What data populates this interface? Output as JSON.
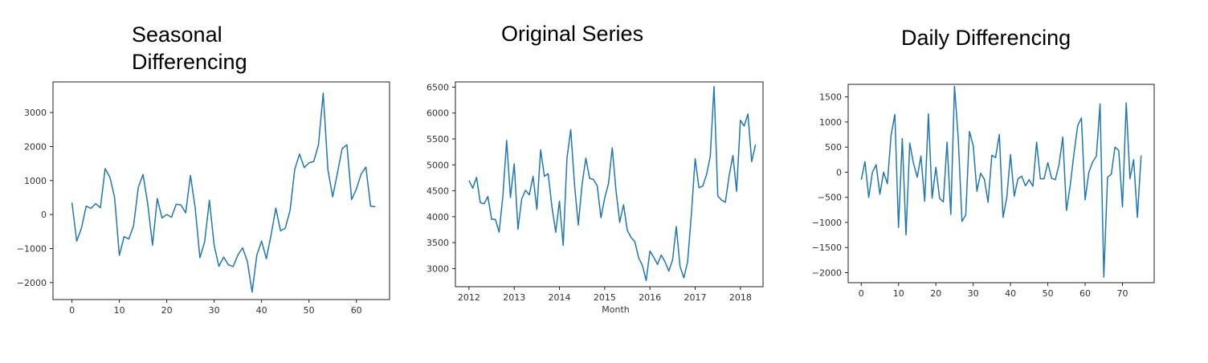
{
  "headings": {
    "seasonal": [
      "Seasonal",
      "Differencing"
    ],
    "original": "Original Series",
    "daily": "Daily Differencing"
  },
  "colors": {
    "series": "#1f77b4",
    "axis": "#222222"
  },
  "chart_data": [
    {
      "id": "seasonal",
      "type": "line",
      "title": "",
      "xlabel": "",
      "ylabel": "",
      "xlim": [
        -4,
        67
      ],
      "ylim": [
        -2500,
        3900
      ],
      "xticks": [
        0,
        10,
        20,
        30,
        40,
        50,
        60
      ],
      "yticks": [
        -2000,
        -1000,
        0,
        1000,
        2000,
        3000
      ],
      "ytick_labels": [
        "−2000",
        "−1000",
        "0",
        "1000",
        "2000",
        "3000"
      ],
      "series": [
        {
          "x": [
            0,
            1,
            2,
            3,
            4,
            5,
            6,
            7,
            8,
            9,
            10,
            11,
            12,
            13,
            14,
            15,
            16,
            17,
            18,
            19,
            20,
            21,
            22,
            23,
            24,
            25,
            26,
            27,
            28,
            29,
            30,
            31,
            32,
            33,
            34,
            35,
            36,
            37,
            38,
            39,
            40,
            41,
            42,
            43,
            44,
            45,
            46,
            47,
            48,
            49,
            50,
            51,
            52,
            53,
            54,
            55,
            56,
            57,
            58,
            59,
            60,
            61,
            62,
            63,
            64
          ],
          "values": [
            350,
            -780,
            -400,
            250,
            180,
            320,
            200,
            1350,
            1100,
            500,
            -1200,
            -650,
            -720,
            -330,
            800,
            1180,
            300,
            -900,
            470,
            -100,
            0,
            -80,
            300,
            280,
            50,
            1150,
            200,
            -1270,
            -800,
            420,
            -900,
            -1520,
            -1250,
            -1480,
            -1530,
            -1190,
            -980,
            -1380,
            -2280,
            -1190,
            -780,
            -1300,
            -600,
            190,
            -480,
            -400,
            120,
            1330,
            1780,
            1380,
            1520,
            1560,
            2050,
            3570,
            1310,
            520,
            1220,
            1940,
            2050,
            440,
            750,
            1190,
            1400,
            250,
            230
          ]
        }
      ]
    },
    {
      "id": "original",
      "type": "line",
      "title": "",
      "xlabel": "Month",
      "ylabel": "",
      "xlim": [
        2011.7,
        2018.5
      ],
      "ylim": [
        2650,
        6600
      ],
      "xticks": [
        2012,
        2013,
        2014,
        2015,
        2016,
        2017,
        2018
      ],
      "yticks": [
        3000,
        3500,
        4000,
        4500,
        5000,
        5500,
        6000,
        6500
      ],
      "series": [
        {
          "x_start": "2012-01",
          "x_step": "month",
          "values": [
            4700,
            4550,
            4760,
            4270,
            4250,
            4390,
            3950,
            3950,
            3700,
            4400,
            5470,
            4370,
            5020,
            3760,
            4350,
            4510,
            4420,
            4780,
            4140,
            5290,
            4780,
            4830,
            4190,
            3700,
            4300,
            3450,
            5130,
            5680,
            4620,
            3840,
            4620,
            5130,
            4740,
            4720,
            4600,
            3980,
            4360,
            4640,
            5330,
            4510,
            3890,
            4230,
            3740,
            3600,
            3520,
            3210,
            3060,
            2770,
            3340,
            3220,
            3080,
            3260,
            3130,
            2950,
            3170,
            3810,
            3040,
            2820,
            3130,
            4050,
            5120,
            4560,
            4590,
            4810,
            5160,
            6510,
            4400,
            4320,
            4280,
            4790,
            5180,
            4490,
            5860,
            5750,
            5980,
            5060,
            5390
          ]
        }
      ]
    },
    {
      "id": "daily",
      "type": "line",
      "title": "",
      "xlabel": "",
      "ylabel": "",
      "xlim": [
        -3.5,
        78.5
      ],
      "ylim": [
        -2200,
        1750
      ],
      "xticks": [
        0,
        10,
        20,
        30,
        40,
        50,
        60,
        70
      ],
      "yticks": [
        -2000,
        -1500,
        -1000,
        -500,
        0,
        500,
        1000,
        1500
      ],
      "ytick_labels": [
        "−2000",
        "−1500",
        "−1000",
        "−500",
        "0",
        "500",
        "1000",
        "1500"
      ],
      "series": [
        {
          "x": [
            0,
            1,
            2,
            3,
            4,
            5,
            6,
            7,
            8,
            9,
            10,
            11,
            12,
            13,
            14,
            15,
            16,
            17,
            18,
            19,
            20,
            21,
            22,
            23,
            24,
            25,
            26,
            27,
            28,
            29,
            30,
            31,
            32,
            33,
            34,
            35,
            36,
            37,
            38,
            39,
            40,
            41,
            42,
            43,
            44,
            45,
            46,
            47,
            48,
            49,
            50,
            51,
            52,
            53,
            54,
            55,
            56,
            57,
            58,
            59,
            60,
            61,
            62,
            63,
            64,
            65,
            66,
            67,
            68,
            69,
            70,
            71,
            72,
            73,
            74,
            75
          ],
          "values": [
            -150,
            210,
            -500,
            0,
            150,
            -440,
            0,
            -230,
            730,
            1150,
            -1100,
            670,
            -1250,
            580,
            180,
            -100,
            320,
            -580,
            1160,
            -520,
            100,
            -520,
            -590,
            600,
            -840,
            1710,
            660,
            -980,
            -850,
            810,
            530,
            -380,
            -20,
            -140,
            -600,
            340,
            290,
            750,
            -900,
            -500,
            350,
            -480,
            -130,
            -80,
            -270,
            -150,
            -280,
            600,
            -130,
            -130,
            190,
            -120,
            -150,
            150,
            700,
            -760,
            -260,
            370,
            930,
            1080,
            -550,
            0,
            200,
            320,
            1360,
            -2090,
            -100,
            -40,
            500,
            430,
            -690,
            1380,
            -130,
            250,
            -900,
            330
          ]
        }
      ]
    }
  ]
}
